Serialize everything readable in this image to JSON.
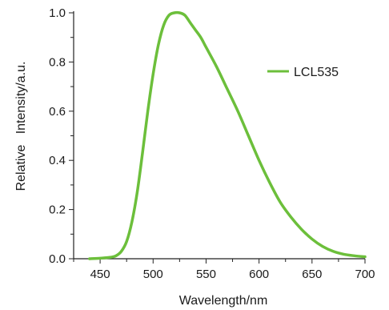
{
  "chart_data": {
    "type": "line",
    "xlabel": "Wavelength/nm",
    "ylabel": "Relative   Intensity/a.u.",
    "xlim": [
      425,
      700
    ],
    "ylim": [
      0.0,
      1.0
    ],
    "xticks": [
      450,
      500,
      550,
      600,
      650,
      700
    ],
    "yticks": [
      "0.0",
      "0.2",
      "0.4",
      "0.6",
      "0.8",
      "1.0"
    ],
    "grid": false,
    "legend_position": "top-right",
    "series": [
      {
        "name": "LCL535",
        "color": "#6cbf3b",
        "x": [
          440,
          450,
          460,
          465,
          470,
          475,
          480,
          485,
          490,
          495,
          500,
          505,
          510,
          515,
          520,
          525,
          530,
          535,
          540,
          545,
          550,
          560,
          570,
          580,
          590,
          600,
          610,
          620,
          630,
          640,
          650,
          660,
          670,
          680,
          690,
          700
        ],
        "y": [
          0.0,
          0.002,
          0.006,
          0.012,
          0.03,
          0.07,
          0.15,
          0.27,
          0.43,
          0.6,
          0.75,
          0.87,
          0.95,
          0.99,
          1.0,
          1.0,
          0.99,
          0.96,
          0.93,
          0.9,
          0.86,
          0.78,
          0.69,
          0.6,
          0.5,
          0.4,
          0.31,
          0.23,
          0.17,
          0.12,
          0.08,
          0.05,
          0.03,
          0.018,
          0.012,
          0.008
        ]
      }
    ]
  }
}
